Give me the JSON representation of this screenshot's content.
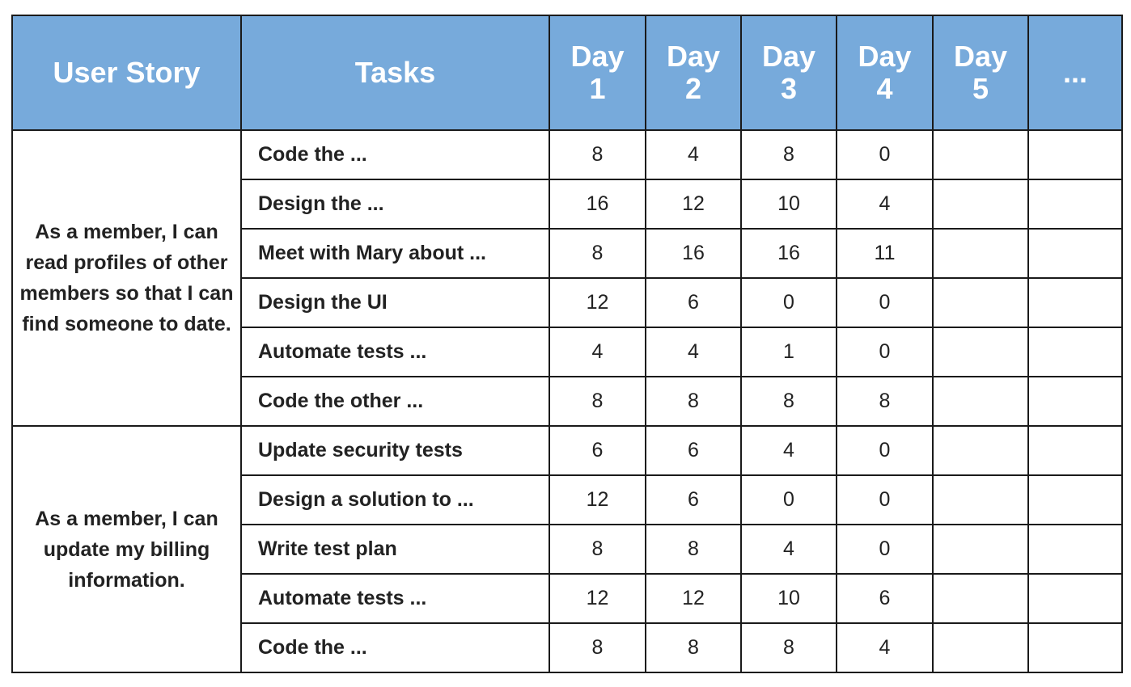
{
  "table": {
    "header": [
      "User Story",
      "Tasks",
      "Day 1",
      "Day 2",
      "Day 3",
      "Day 4",
      "Day 5",
      "..."
    ],
    "groups": [
      {
        "story": "As a member, I can read profiles of other members so that I can find someone to date.",
        "rows": [
          {
            "task": "Code the ...",
            "days": [
              8,
              4,
              8,
              0
            ]
          },
          {
            "task": "Design the ...",
            "days": [
              16,
              12,
              10,
              4
            ]
          },
          {
            "task": "Meet with Mary about ...",
            "days": [
              8,
              16,
              16,
              11
            ]
          },
          {
            "task": "Design the UI",
            "days": [
              12,
              6,
              0,
              0
            ]
          },
          {
            "task": "Automate tests ...",
            "days": [
              4,
              4,
              1,
              0
            ]
          },
          {
            "task": "Code the other ...",
            "days": [
              8,
              8,
              8,
              8
            ]
          }
        ]
      },
      {
        "story": "As a member, I can update my billing information.",
        "rows": [
          {
            "task": "Update security tests",
            "days": [
              6,
              6,
              4,
              0
            ]
          },
          {
            "task": "Design a solution to ...",
            "days": [
              12,
              6,
              0,
              0
            ]
          },
          {
            "task": "Write test plan",
            "days": [
              8,
              8,
              4,
              0
            ]
          },
          {
            "task": "Automate tests ...",
            "days": [
              12,
              12,
              10,
              6
            ]
          },
          {
            "task": "Code the ...",
            "days": [
              8,
              8,
              8,
              4
            ]
          }
        ]
      }
    ]
  }
}
